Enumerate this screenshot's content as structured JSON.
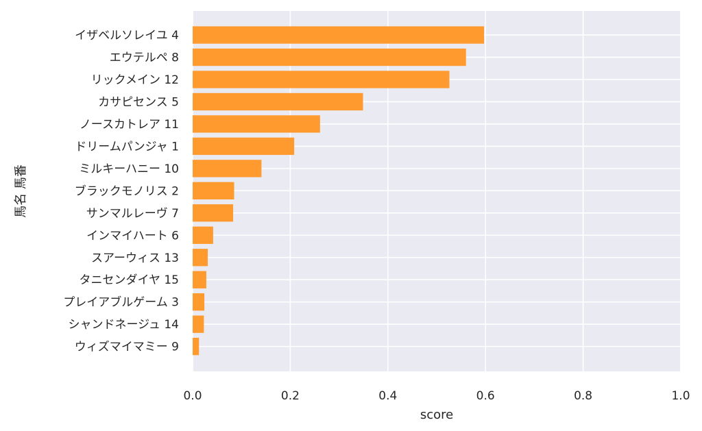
{
  "chart_data": {
    "type": "bar",
    "orientation": "horizontal",
    "categories": [
      "イザベルソレイユ 4",
      "エウテルペ 8",
      "リックメイン 12",
      "カサピセンス 5",
      "ノースカトレア 11",
      "ドリームパンジャ 1",
      "ミルキーハニー 10",
      "ブラックモノリス 2",
      "サンマルレーヴ 7",
      "インマイハート 6",
      "スアーウィス 13",
      "タニセンダイヤ 15",
      "プレイアブルゲーム 3",
      "シャンドネージュ 14",
      "ウィズマイマミー 9"
    ],
    "values": [
      0.597,
      0.56,
      0.526,
      0.349,
      0.261,
      0.208,
      0.141,
      0.085,
      0.083,
      0.042,
      0.031,
      0.028,
      0.024,
      0.023,
      0.013
    ],
    "xlabel": "score",
    "ylabel": "馬名 馬番",
    "xlim": [
      0,
      1.0
    ],
    "xticks": [
      "0.0",
      "0.2",
      "0.4",
      "0.6",
      "0.8",
      "1.0"
    ],
    "grid": true,
    "bar_color": "#ff9a2e",
    "background_color": "#eaeaf2"
  }
}
